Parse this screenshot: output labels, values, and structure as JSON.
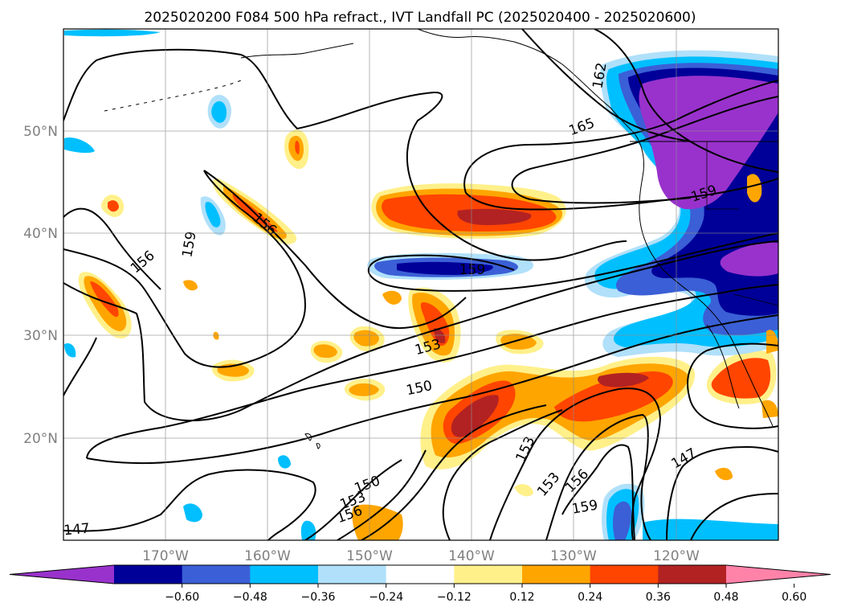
{
  "title": "2025020200 F084 500 hPa refract., IVT Landfall PC (2025020400 - 2025020600)",
  "map": {
    "region": "North Pacific and western North America",
    "lat_labels": [
      "50°N",
      "40°N",
      "30°N",
      "20°N"
    ],
    "lon_labels": [
      "170°W",
      "160°W",
      "150°W",
      "140°W",
      "130°W",
      "120°W"
    ],
    "grid": true,
    "contour_color": "#000000",
    "contour_labels": [
      "147",
      "150",
      "153",
      "156",
      "159",
      "162",
      "165",
      "159",
      "156",
      "159",
      "153",
      "150",
      "153",
      "147",
      "153",
      "156",
      "159",
      "147",
      "156",
      "159",
      "162"
    ]
  },
  "colorbar": {
    "tick_labels": [
      "−0.60",
      "−0.48",
      "−0.36",
      "−0.24",
      "−0.12",
      "0.12",
      "0.24",
      "0.36",
      "0.48",
      "0.60"
    ],
    "colors": [
      "#9932cc",
      "#000099",
      "#3b5fd6",
      "#00bfff",
      "#b0e0fa",
      "#ffffff",
      "#fff08a",
      "#ffa500",
      "#ff4500",
      "#b22222",
      "#ff82a9"
    ],
    "extend": "both"
  }
}
